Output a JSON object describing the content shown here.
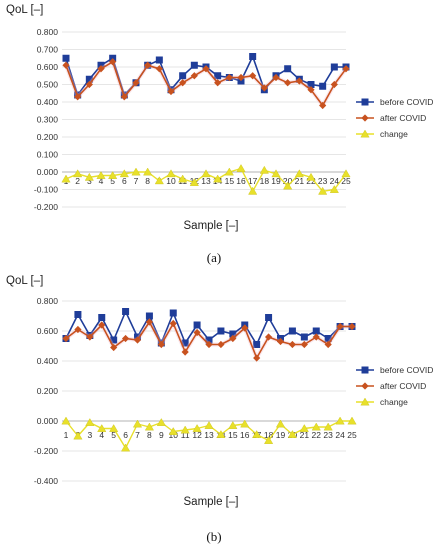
{
  "chart_data": [
    {
      "type": "line",
      "ylabel": "QoL [–]",
      "xlabel": "Sample [–]",
      "caption": "(a)",
      "ylim": [
        -0.2,
        0.8
      ],
      "yticks": [
        "0.800",
        "0.700",
        "0.600",
        "0.500",
        "0.400",
        "0.300",
        "0.200",
        "0.100",
        "0.000",
        "-0.100",
        "-0.200"
      ],
      "ytick_values": [
        0.8,
        0.7,
        0.6,
        0.5,
        0.4,
        0.3,
        0.2,
        0.1,
        0.0,
        -0.1,
        -0.2
      ],
      "categories": [
        "1",
        "2",
        "3",
        "4",
        "5",
        "6",
        "7",
        "8",
        "9",
        "10",
        "11",
        "12",
        "13",
        "14",
        "15",
        "16",
        "17",
        "18",
        "19",
        "20",
        "21",
        "22",
        "23",
        "24",
        "25"
      ],
      "legend_position": "right",
      "series": [
        {
          "name": "before COVID",
          "color": "#1f3d99",
          "marker": "square",
          "values": [
            0.65,
            0.44,
            0.53,
            0.61,
            0.65,
            0.44,
            0.51,
            0.61,
            0.64,
            0.47,
            0.55,
            0.61,
            0.6,
            0.55,
            0.54,
            0.52,
            0.66,
            0.47,
            0.55,
            0.59,
            0.53,
            0.5,
            0.49,
            0.6,
            0.6
          ]
        },
        {
          "name": "after COVID",
          "color": "#c8521f",
          "marker": "diamond",
          "values": [
            0.61,
            0.43,
            0.5,
            0.59,
            0.63,
            0.43,
            0.51,
            0.61,
            0.59,
            0.46,
            0.51,
            0.55,
            0.59,
            0.51,
            0.54,
            0.54,
            0.55,
            0.48,
            0.54,
            0.51,
            0.52,
            0.47,
            0.38,
            0.5,
            0.59
          ]
        },
        {
          "name": "change",
          "color": "#e8e02a",
          "marker": "triangle",
          "values": [
            -0.04,
            -0.01,
            -0.03,
            -0.02,
            -0.02,
            -0.01,
            0.0,
            0.0,
            -0.05,
            -0.01,
            -0.04,
            -0.06,
            -0.01,
            -0.04,
            0.0,
            0.02,
            -0.11,
            0.01,
            -0.01,
            -0.08,
            -0.01,
            -0.03,
            -0.11,
            -0.1,
            -0.01
          ]
        }
      ]
    },
    {
      "type": "line",
      "ylabel": "QoL [–]",
      "xlabel": "Sample [–]",
      "caption": "(b)",
      "ylim": [
        -0.4,
        0.8
      ],
      "yticks": [
        "0.800",
        "0.600",
        "0.400",
        "0.200",
        "0.000",
        "-0.200",
        "-0.400"
      ],
      "ytick_values": [
        0.8,
        0.6,
        0.4,
        0.2,
        0.0,
        -0.2,
        -0.4
      ],
      "categories": [
        "1",
        "2",
        "3",
        "4",
        "5",
        "6",
        "7",
        "8",
        "9",
        "10",
        "11",
        "12",
        "13",
        "14",
        "15",
        "16",
        "17",
        "18",
        "19",
        "20",
        "21",
        "22",
        "23",
        "24",
        "25"
      ],
      "legend_position": "right",
      "series": [
        {
          "name": "before COVID",
          "color": "#1f3d99",
          "marker": "square",
          "values": [
            0.55,
            0.71,
            0.57,
            0.69,
            0.54,
            0.73,
            0.56,
            0.7,
            0.52,
            0.72,
            0.52,
            0.64,
            0.54,
            0.6,
            0.58,
            0.64,
            0.51,
            0.69,
            0.55,
            0.6,
            0.56,
            0.6,
            0.55,
            0.63,
            0.63
          ]
        },
        {
          "name": "after COVID",
          "color": "#c8521f",
          "marker": "diamond",
          "values": [
            0.55,
            0.61,
            0.56,
            0.64,
            0.49,
            0.55,
            0.54,
            0.66,
            0.51,
            0.65,
            0.46,
            0.59,
            0.51,
            0.51,
            0.55,
            0.62,
            0.42,
            0.56,
            0.53,
            0.51,
            0.51,
            0.56,
            0.51,
            0.63,
            0.63
          ]
        },
        {
          "name": "change",
          "color": "#e8e02a",
          "marker": "triangle",
          "values": [
            0.0,
            -0.1,
            -0.01,
            -0.05,
            -0.05,
            -0.18,
            -0.02,
            -0.04,
            -0.01,
            -0.07,
            -0.06,
            -0.05,
            -0.03,
            -0.09,
            -0.03,
            -0.02,
            -0.09,
            -0.13,
            -0.02,
            -0.09,
            -0.05,
            -0.04,
            -0.04,
            0.0,
            0.0
          ]
        }
      ]
    }
  ]
}
